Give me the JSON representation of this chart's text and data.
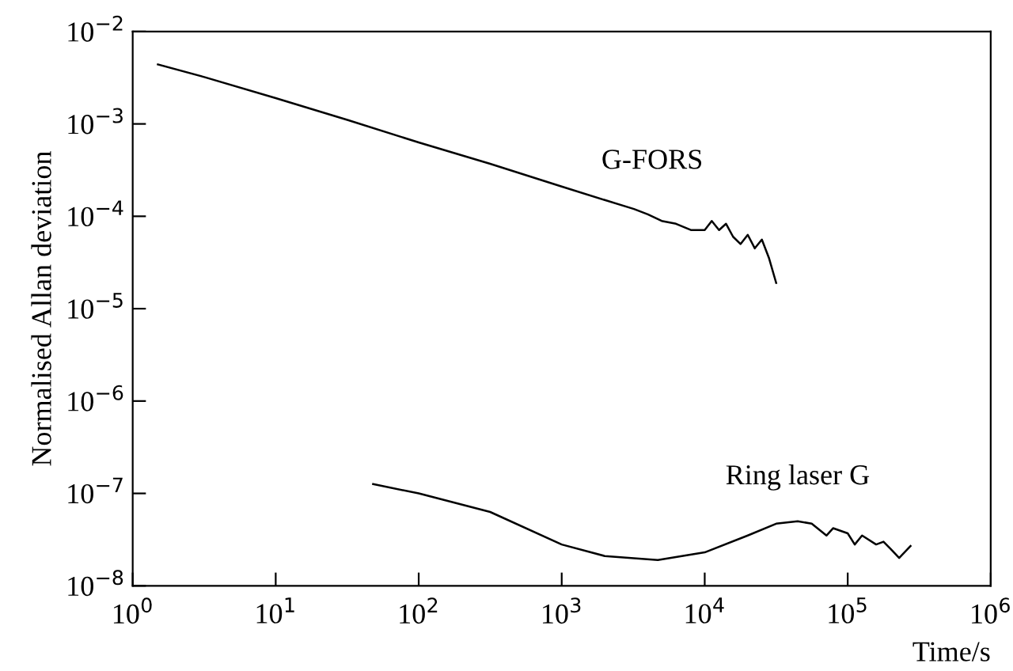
{
  "chart_data": {
    "type": "line",
    "xlabel": "Time/s",
    "ylabel": "Normalised Allan deviation",
    "log": "xy",
    "grid": false,
    "legend": false,
    "marker": "none",
    "line_style": "solid",
    "xlim": [
      1,
      1000000
    ],
    "ylim": [
      1e-08,
      0.01
    ],
    "xticks": [
      {
        "value": 1,
        "label": "10$^{0}$"
      },
      {
        "value": 10,
        "label": "10$^{1}$"
      },
      {
        "value": 100,
        "label": "10$^{2}$"
      },
      {
        "value": 1000,
        "label": "10$^{3}$"
      },
      {
        "value": 10000,
        "label": "10$^{4}$"
      },
      {
        "value": 100000,
        "label": "10$^{5}$"
      },
      {
        "value": 1000000,
        "label": "10$^{6}$"
      }
    ],
    "yticks": [
      {
        "value": 1e-08,
        "label": "10$^{−8}$"
      },
      {
        "value": 1e-07,
        "label": "10$^{−7}$"
      },
      {
        "value": 1e-06,
        "label": "10$^{−6}$"
      },
      {
        "value": 1e-05,
        "label": "10$^{−5}$"
      },
      {
        "value": 0.0001,
        "label": "10$^{−4}$"
      },
      {
        "value": 0.001,
        "label": "10$^{−3}$"
      },
      {
        "value": 0.01,
        "label": "10$^{−2}$"
      }
    ],
    "series": [
      {
        "name": "G-FORS",
        "color": "#000000",
        "x": [
          1.5,
          3.2,
          10,
          32,
          100,
          316,
          1000,
          2000,
          3200,
          4000,
          5000,
          6300,
          8000,
          10000,
          11200,
          12600,
          14100,
          15800,
          17800,
          20000,
          22400,
          25100,
          28200,
          31600
        ],
        "values": [
          0.0044,
          0.0032,
          0.0019,
          0.0011,
          0.00063,
          0.00037,
          0.00021,
          0.00015,
          0.00012,
          0.000105,
          8.9e-05,
          8.3e-05,
          7.1e-05,
          7.1e-05,
          8.9e-05,
          7.1e-05,
          8.3e-05,
          6e-05,
          5e-05,
          6.3e-05,
          4.5e-05,
          5.6e-05,
          3.5e-05,
          1.9e-05
        ]
      },
      {
        "name": "Ring laser G",
        "color": "#000000",
        "x": [
          48,
          100,
          316,
          1000,
          2000,
          4700,
          10000,
          20000,
          31600,
          44700,
          56000,
          71000,
          79000,
          100000,
          112000,
          126000,
          158000,
          178000,
          200000,
          229000,
          275000
        ],
        "values": [
          1.26e-07,
          1e-07,
          6.3e-08,
          2.8e-08,
          2.1e-08,
          1.9e-08,
          2.3e-08,
          3.5e-08,
          4.7e-08,
          5e-08,
          4.7e-08,
          3.5e-08,
          4.2e-08,
          3.7e-08,
          2.8e-08,
          3.5e-08,
          2.8e-08,
          3e-08,
          2.5e-08,
          2e-08,
          2.7e-08
        ]
      }
    ]
  }
}
